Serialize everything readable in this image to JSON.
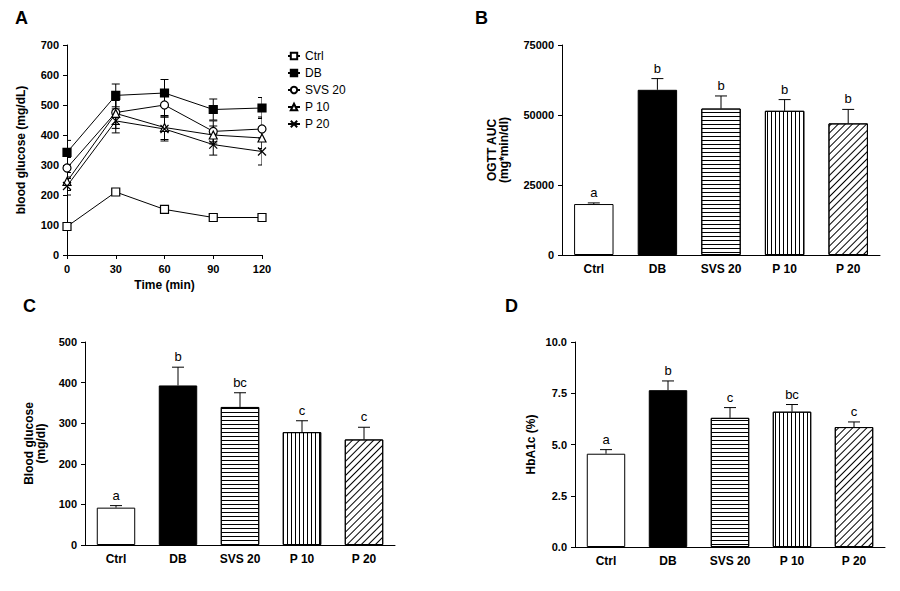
{
  "chart_data": [
    {
      "type": "line",
      "title": "A",
      "x_label": "Time (min)",
      "y_label": "blood glucose (mg/dL)",
      "x": [
        0,
        30,
        60,
        90,
        120
      ],
      "xlim": [
        0,
        120
      ],
      "xticks": [
        0,
        30,
        60,
        90,
        120
      ],
      "ylim": [
        0,
        700
      ],
      "yticks": [
        0,
        100,
        200,
        300,
        400,
        500,
        600,
        700
      ],
      "grid": false,
      "legend": "right",
      "series": [
        {
          "name": "Ctrl",
          "color": "#000000",
          "marker": "square-open",
          "values": [
            95,
            210,
            152,
            125,
            125
          ],
          "error": [
            8,
            8,
            6,
            5,
            5
          ]
        },
        {
          "name": "DB",
          "color": "#000000",
          "marker": "square",
          "values": [
            342,
            532,
            540,
            485,
            490
          ],
          "error": [
            40,
            38,
            45,
            35,
            35
          ]
        },
        {
          "name": "SVS 20",
          "color": "#000000",
          "marker": "circle-open",
          "values": [
            290,
            475,
            500,
            412,
            420
          ],
          "error": [
            35,
            40,
            40,
            35,
            40
          ]
        },
        {
          "name": "P 10",
          "color": "#000000",
          "marker": "triangle-open",
          "values": [
            245,
            472,
            425,
            400,
            390
          ],
          "error": [
            30,
            50,
            40,
            30,
            35
          ]
        },
        {
          "name": "P 20",
          "color": "#000000",
          "marker": "x",
          "values": [
            230,
            447,
            420,
            368,
            345
          ],
          "error": [
            30,
            40,
            40,
            35,
            45
          ]
        }
      ]
    },
    {
      "type": "bar",
      "title": "B",
      "y_label": "OGTT AUC\n(mg*min/dl)",
      "categories": [
        "Ctrl",
        "DB",
        "SVS 20",
        "P 10",
        "P 20"
      ],
      "values": [
        18200,
        59000,
        52300,
        51500,
        47000
      ],
      "error": [
        400,
        4000,
        4500,
        4000,
        5000
      ],
      "annotations": [
        "a",
        "b",
        "b",
        "b",
        "b"
      ],
      "colors": [
        "#ffffff",
        "#000000",
        "#ffffff",
        "#ffffff",
        "#ffffff"
      ],
      "ylim": [
        0,
        75000
      ],
      "yticks": [
        0,
        25000,
        50000,
        75000
      ],
      "grid": false
    },
    {
      "type": "bar",
      "title": "C",
      "y_label": "Blood glucose\n(mg/dl)",
      "categories": [
        "Ctrl",
        "DB",
        "SVS 20",
        "P 10",
        "P 20"
      ],
      "values": [
        92,
        393,
        340,
        278,
        260
      ],
      "error": [
        5,
        45,
        35,
        28,
        30
      ],
      "annotations": [
        "a",
        "b",
        "bc",
        "c",
        "c"
      ],
      "colors": [
        "#ffffff",
        "#000000",
        "#ffffff",
        "#ffffff",
        "#ffffff"
      ],
      "ylim": [
        0,
        500
      ],
      "yticks": [
        0,
        100,
        200,
        300,
        400,
        500
      ],
      "grid": false
    },
    {
      "type": "bar",
      "title": "D",
      "y_label": "HbA1c (%)",
      "categories": [
        "Ctrl",
        "DB",
        "SVS 20",
        "P 10",
        "P 20"
      ],
      "values": [
        4.55,
        7.65,
        6.3,
        6.6,
        5.85
      ],
      "error": [
        0.2,
        0.45,
        0.5,
        0.35,
        0.25
      ],
      "annotations": [
        "a",
        "b",
        "c",
        "bc",
        "c"
      ],
      "colors": [
        "#ffffff",
        "#000000",
        "#ffffff",
        "#ffffff",
        "#ffffff"
      ],
      "ylim": [
        0,
        10
      ],
      "yticks": [
        {
          "value": 0,
          "label": "0.0"
        },
        {
          "value": 2.5,
          "label": "2.5"
        },
        {
          "value": 5,
          "label": "5.0"
        },
        {
          "value": 7.5,
          "label": "7.5"
        },
        {
          "value": 10,
          "label": "10.0"
        }
      ],
      "grid": false
    }
  ]
}
